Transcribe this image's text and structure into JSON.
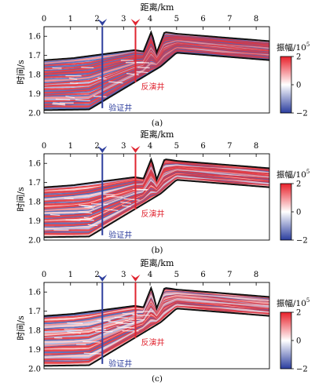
{
  "axis": {
    "x_title": "距离/km",
    "y_title": "时间/s",
    "x_ticks": [
      "0",
      "1",
      "2",
      "3",
      "4",
      "5",
      "6",
      "7",
      "8"
    ],
    "y_ticks": [
      "1.6",
      "1.7",
      "1.8",
      "1.9",
      "2.0"
    ]
  },
  "colorbar": {
    "title": "振幅/10",
    "title_exponent": "5",
    "ticks": [
      "2",
      "0",
      "−2"
    ],
    "colors": {
      "high": "#e8202a",
      "mid": "#ffffff",
      "low": "#2a3d9e"
    }
  },
  "wells": [
    {
      "label": "验证井",
      "x_km": 2.2,
      "color": "#2e3f9e"
    },
    {
      "label": "反演井",
      "x_km": 3.45,
      "color": "#e02530"
    }
  ],
  "panels": [
    {
      "caption": "(a)"
    },
    {
      "caption": "(b)"
    },
    {
      "caption": "(c)"
    }
  ],
  "chart_data": [
    {
      "type": "heatmap",
      "title": "",
      "xlabel": "距离/km",
      "ylabel": "时间/s",
      "xlim": [
        0,
        8.5
      ],
      "ylim": [
        2.0,
        1.55
      ],
      "color_range": [
        -2,
        2
      ],
      "color_label": "振幅/10^5"
    },
    {
      "type": "heatmap",
      "title": "",
      "xlabel": "距离/km",
      "ylabel": "时间/s",
      "xlim": [
        0,
        8.5
      ],
      "ylim": [
        2.0,
        1.55
      ],
      "color_range": [
        -2,
        2
      ],
      "color_label": "振幅/10^5"
    },
    {
      "type": "heatmap",
      "title": "",
      "xlabel": "距离/km",
      "ylabel": "时间/s",
      "xlim": [
        0,
        8.5
      ],
      "ylim": [
        2.0,
        1.55
      ],
      "color_range": [
        -2,
        2
      ],
      "color_label": "振幅/10^5"
    }
  ]
}
